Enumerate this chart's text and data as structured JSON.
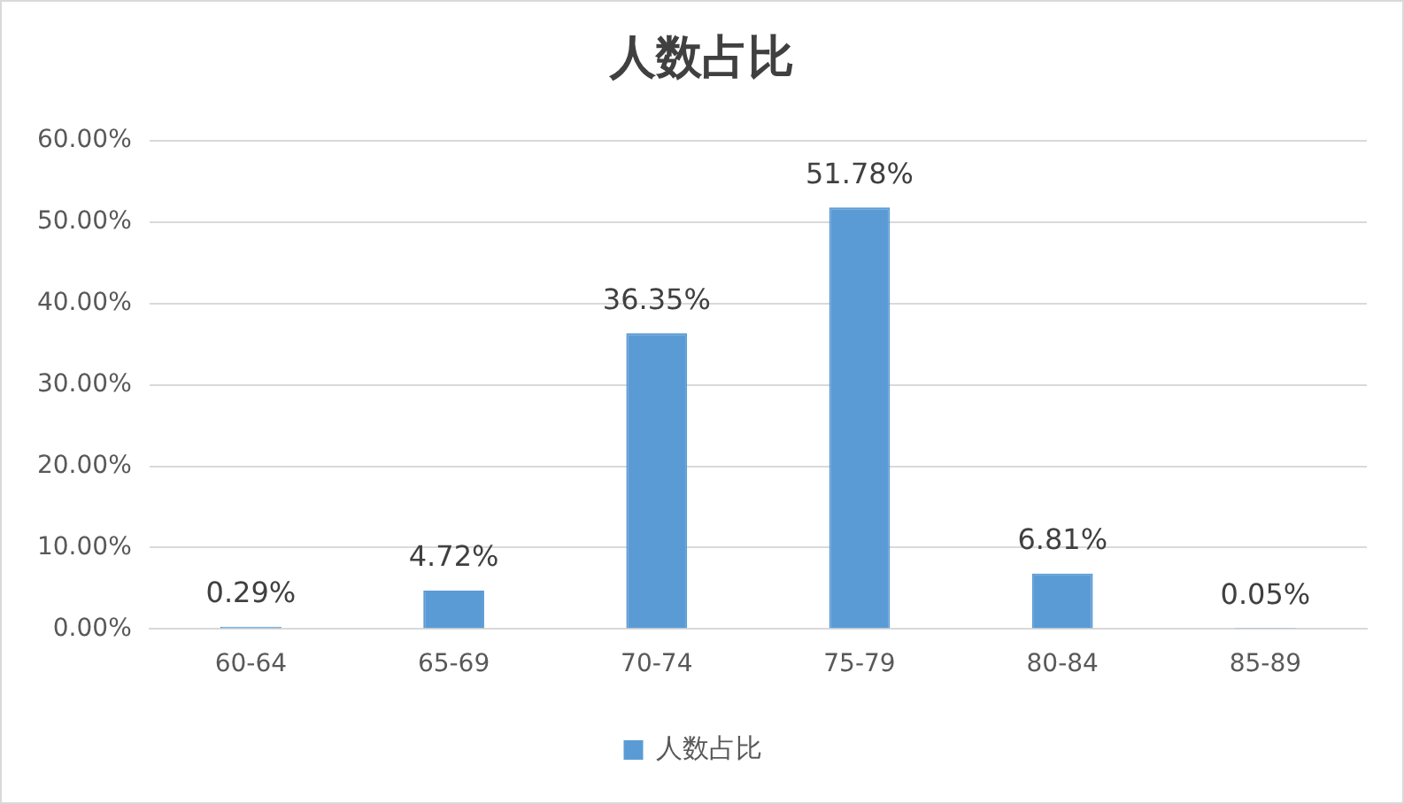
{
  "chart_data": {
    "type": "bar",
    "title": "人数占比",
    "categories": [
      "60-64",
      "65-69",
      "70-74",
      "75-79",
      "80-84",
      "85-89"
    ],
    "series": [
      {
        "name": "人数占比",
        "color": "#5b9bd5",
        "values": [
          0.29,
          4.72,
          36.35,
          51.78,
          6.81,
          0.05
        ],
        "value_labels": [
          "0.29%",
          "4.72%",
          "36.35%",
          "51.78%",
          "6.81%",
          "0.05%"
        ]
      }
    ],
    "ylim": [
      0,
      60
    ],
    "yticks": [
      {
        "value": 0,
        "label": "0.00%"
      },
      {
        "value": 10,
        "label": "10.00%"
      },
      {
        "value": 20,
        "label": "20.00%"
      },
      {
        "value": 30,
        "label": "30.00%"
      },
      {
        "value": 40,
        "label": "40.00%"
      },
      {
        "value": 50,
        "label": "50.00%"
      },
      {
        "value": 60,
        "label": "60.00%"
      }
    ],
    "grid": "y",
    "legend": "bottom"
  }
}
